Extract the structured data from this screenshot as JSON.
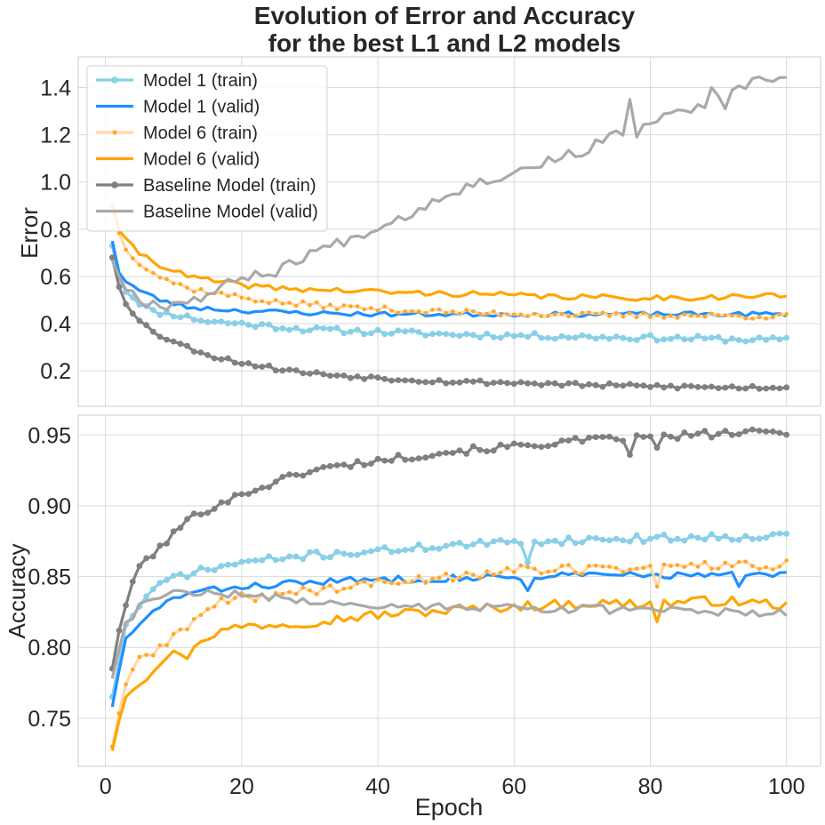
{
  "figure": {
    "title_line1": "Evolution of Error and Accuracy",
    "title_line2": "for the best L1 and L2 models"
  },
  "colors": {
    "model1_train": "#89cfe8",
    "model1_valid": "#1e90ff",
    "model6_train": "#ffd8a8",
    "model6_train_marker": "#ffa726",
    "model6_valid": "#ffa500",
    "baseline_train": "#808080",
    "baseline_valid": "#a9a9a9",
    "grid": "#d9d9d9",
    "spine": "#cccccc"
  },
  "chart_data": [
    {
      "type": "line",
      "ylabel": "Error",
      "xlabel": "",
      "xlim": [
        -4,
        105
      ],
      "ylim": [
        0.05,
        1.53
      ],
      "xticks": [
        0,
        20,
        40,
        60,
        80,
        100
      ],
      "yticks": [
        0.2,
        0.4,
        0.6,
        0.8,
        1.0,
        1.2,
        1.4
      ],
      "ytick_labels": [
        "0.2",
        "0.4",
        "0.6",
        "0.8",
        "1.0",
        "1.2",
        "1.4"
      ],
      "grid": true,
      "legend_position": "top-left",
      "series": [
        {
          "name": "Model 1 (train)",
          "anchors": [
            [
              1,
              0.73
            ],
            [
              2,
              0.6
            ],
            [
              3,
              0.54
            ],
            [
              5,
              0.49
            ],
            [
              7,
              0.45
            ],
            [
              10,
              0.44
            ],
            [
              15,
              0.41
            ],
            [
              20,
              0.4
            ],
            [
              30,
              0.375
            ],
            [
              40,
              0.365
            ],
            [
              50,
              0.355
            ],
            [
              60,
              0.35
            ],
            [
              70,
              0.345
            ],
            [
              80,
              0.34
            ],
            [
              90,
              0.335
            ],
            [
              100,
              0.33
            ]
          ],
          "noise": 0.012,
          "seed": 11
        },
        {
          "name": "Model 1 (valid)",
          "anchors": [
            [
              1,
              0.75
            ],
            [
              2,
              0.62
            ],
            [
              3,
              0.58
            ],
            [
              5,
              0.54
            ],
            [
              8,
              0.5
            ],
            [
              12,
              0.47
            ],
            [
              20,
              0.455
            ],
            [
              30,
              0.445
            ],
            [
              40,
              0.44
            ],
            [
              50,
              0.44
            ],
            [
              60,
              0.44
            ],
            [
              70,
              0.44
            ],
            [
              80,
              0.44
            ],
            [
              90,
              0.44
            ],
            [
              100,
              0.44
            ]
          ],
          "noise": 0.01,
          "seed": 23
        },
        {
          "name": "Model 6 (train)",
          "anchors": [
            [
              1,
              0.9
            ],
            [
              2,
              0.79
            ],
            [
              3,
              0.71
            ],
            [
              5,
              0.66
            ],
            [
              8,
              0.6
            ],
            [
              12,
              0.55
            ],
            [
              18,
              0.52
            ],
            [
              25,
              0.49
            ],
            [
              35,
              0.47
            ],
            [
              45,
              0.455
            ],
            [
              55,
              0.445
            ],
            [
              65,
              0.44
            ],
            [
              75,
              0.435
            ],
            [
              85,
              0.435
            ],
            [
              100,
              0.43
            ]
          ],
          "noise": 0.012,
          "seed": 37
        },
        {
          "name": "Model 6 (valid)",
          "anchors": [
            [
              1,
              0.91
            ],
            [
              2,
              0.8
            ],
            [
              3,
              0.75
            ],
            [
              5,
              0.7
            ],
            [
              8,
              0.65
            ],
            [
              12,
              0.6
            ],
            [
              18,
              0.57
            ],
            [
              25,
              0.55
            ],
            [
              35,
              0.54
            ],
            [
              45,
              0.53
            ],
            [
              55,
              0.525
            ],
            [
              65,
              0.515
            ],
            [
              75,
              0.51
            ],
            [
              85,
              0.51
            ],
            [
              100,
              0.52
            ]
          ],
          "noise": 0.012,
          "seed": 41
        },
        {
          "name": "Baseline Model (train)",
          "anchors": [
            [
              1,
              0.68
            ],
            [
              2,
              0.56
            ],
            [
              3,
              0.49
            ],
            [
              5,
              0.41
            ],
            [
              8,
              0.35
            ],
            [
              12,
              0.3
            ],
            [
              16,
              0.26
            ],
            [
              20,
              0.235
            ],
            [
              25,
              0.21
            ],
            [
              30,
              0.19
            ],
            [
              40,
              0.17
            ],
            [
              50,
              0.155
            ],
            [
              60,
              0.15
            ],
            [
              70,
              0.14
            ],
            [
              80,
              0.135
            ],
            [
              90,
              0.13
            ],
            [
              100,
              0.13
            ]
          ],
          "noise": 0.009,
          "seed": 53
        },
        {
          "name": "Baseline Model (valid)",
          "anchors": [
            [
              1,
              0.67
            ],
            [
              3,
              0.55
            ],
            [
              6,
              0.49
            ],
            [
              9,
              0.48
            ],
            [
              12,
              0.5
            ],
            [
              15,
              0.52
            ],
            [
              20,
              0.6
            ],
            [
              25,
              0.62
            ],
            [
              30,
              0.7
            ],
            [
              35,
              0.75
            ],
            [
              40,
              0.81
            ],
            [
              45,
              0.87
            ],
            [
              50,
              0.95
            ],
            [
              55,
              1.0
            ],
            [
              60,
              1.04
            ],
            [
              65,
              1.09
            ],
            [
              70,
              1.13
            ],
            [
              75,
              1.2
            ],
            [
              80,
              1.25
            ],
            [
              85,
              1.3
            ],
            [
              90,
              1.35
            ],
            [
              95,
              1.42
            ],
            [
              100,
              1.45
            ]
          ],
          "noise": 0.022,
          "seed": 67,
          "fixed_points": [
            [
              77,
              1.35
            ],
            [
              78,
              1.19
            ],
            [
              89,
              1.4
            ],
            [
              91,
              1.31
            ]
          ]
        }
      ]
    },
    {
      "type": "line",
      "ylabel": "Accuracy",
      "xlabel": "Epoch",
      "xlim": [
        -4,
        105
      ],
      "ylim": [
        0.716,
        0.964
      ],
      "xticks": [
        0,
        20,
        40,
        60,
        80,
        100
      ],
      "yticks": [
        0.75,
        0.8,
        0.85,
        0.9,
        0.95
      ],
      "ytick_labels": [
        "0.75",
        "0.80",
        "0.85",
        "0.90",
        "0.95"
      ],
      "grid": true,
      "series": [
        {
          "name": "Model 1 (train)",
          "anchors": [
            [
              1,
              0.765
            ],
            [
              2,
              0.79
            ],
            [
              3,
              0.815
            ],
            [
              5,
              0.83
            ],
            [
              7,
              0.84
            ],
            [
              10,
              0.85
            ],
            [
              15,
              0.855
            ],
            [
              20,
              0.86
            ],
            [
              30,
              0.865
            ],
            [
              40,
              0.868
            ],
            [
              50,
              0.872
            ],
            [
              60,
              0.874
            ],
            [
              70,
              0.876
            ],
            [
              80,
              0.877
            ],
            [
              90,
              0.878
            ],
            [
              100,
              0.879
            ]
          ],
          "noise": 0.0025,
          "seed": 71,
          "fixed_points": [
            [
              62,
              0.86
            ]
          ]
        },
        {
          "name": "Model 1 (valid)",
          "anchors": [
            [
              1,
              0.758
            ],
            [
              2,
              0.785
            ],
            [
              3,
              0.805
            ],
            [
              5,
              0.815
            ],
            [
              8,
              0.83
            ],
            [
              12,
              0.838
            ],
            [
              20,
              0.843
            ],
            [
              30,
              0.846
            ],
            [
              40,
              0.848
            ],
            [
              50,
              0.849
            ],
            [
              60,
              0.85
            ],
            [
              70,
              0.851
            ],
            [
              80,
              0.851
            ],
            [
              90,
              0.851
            ],
            [
              100,
              0.851
            ]
          ],
          "noise": 0.0025,
          "seed": 83,
          "fixed_points": [
            [
              62,
              0.84
            ],
            [
              93,
              0.843
            ]
          ]
        },
        {
          "name": "Model 6 (train)",
          "anchors": [
            [
              1,
              0.73
            ],
            [
              2,
              0.755
            ],
            [
              3,
              0.775
            ],
            [
              5,
              0.79
            ],
            [
              8,
              0.8
            ],
            [
              12,
              0.815
            ],
            [
              16,
              0.83
            ],
            [
              20,
              0.835
            ],
            [
              30,
              0.84
            ],
            [
              40,
              0.845
            ],
            [
              50,
              0.85
            ],
            [
              60,
              0.855
            ],
            [
              70,
              0.855
            ],
            [
              80,
              0.857
            ],
            [
              90,
              0.858
            ],
            [
              100,
              0.858
            ]
          ],
          "noise": 0.0035,
          "seed": 89,
          "fixed_points": [
            [
              81,
              0.843
            ]
          ]
        },
        {
          "name": "Model 6 (valid)",
          "anchors": [
            [
              1,
              0.727
            ],
            [
              2,
              0.75
            ],
            [
              3,
              0.768
            ],
            [
              5,
              0.775
            ],
            [
              8,
              0.79
            ],
            [
              12,
              0.8
            ],
            [
              16,
              0.81
            ],
            [
              20,
              0.815
            ],
            [
              30,
              0.818
            ],
            [
              40,
              0.823
            ],
            [
              50,
              0.826
            ],
            [
              60,
              0.829
            ],
            [
              70,
              0.831
            ],
            [
              80,
              0.831
            ],
            [
              90,
              0.833
            ],
            [
              100,
              0.83
            ]
          ],
          "noise": 0.0035,
          "seed": 97,
          "fixed_points": [
            [
              12,
              0.792
            ],
            [
              81,
              0.818
            ]
          ]
        },
        {
          "name": "Baseline Model (train)",
          "anchors": [
            [
              1,
              0.785
            ],
            [
              2,
              0.813
            ],
            [
              3,
              0.83
            ],
            [
              5,
              0.858
            ],
            [
              8,
              0.87
            ],
            [
              12,
              0.89
            ],
            [
              16,
              0.9
            ],
            [
              20,
              0.908
            ],
            [
              25,
              0.917
            ],
            [
              30,
              0.925
            ],
            [
              40,
              0.932
            ],
            [
              50,
              0.938
            ],
            [
              60,
              0.942
            ],
            [
              70,
              0.946
            ],
            [
              80,
              0.948
            ],
            [
              90,
              0.951
            ],
            [
              100,
              0.952
            ]
          ],
          "noise": 0.0025,
          "seed": 101,
          "fixed_points": [
            [
              77,
              0.936
            ],
            [
              81,
              0.941
            ]
          ]
        },
        {
          "name": "Baseline Model (valid)",
          "anchors": [
            [
              1,
              0.778
            ],
            [
              2,
              0.8
            ],
            [
              3,
              0.815
            ],
            [
              5,
              0.83
            ],
            [
              8,
              0.835
            ],
            [
              12,
              0.84
            ],
            [
              20,
              0.837
            ],
            [
              30,
              0.833
            ],
            [
              40,
              0.83
            ],
            [
              50,
              0.829
            ],
            [
              60,
              0.828
            ],
            [
              70,
              0.827
            ],
            [
              80,
              0.826
            ],
            [
              90,
              0.825
            ],
            [
              100,
              0.824
            ]
          ],
          "noise": 0.003,
          "seed": 107
        }
      ]
    }
  ],
  "legend_order": [
    0,
    1,
    2,
    3,
    4,
    5
  ]
}
